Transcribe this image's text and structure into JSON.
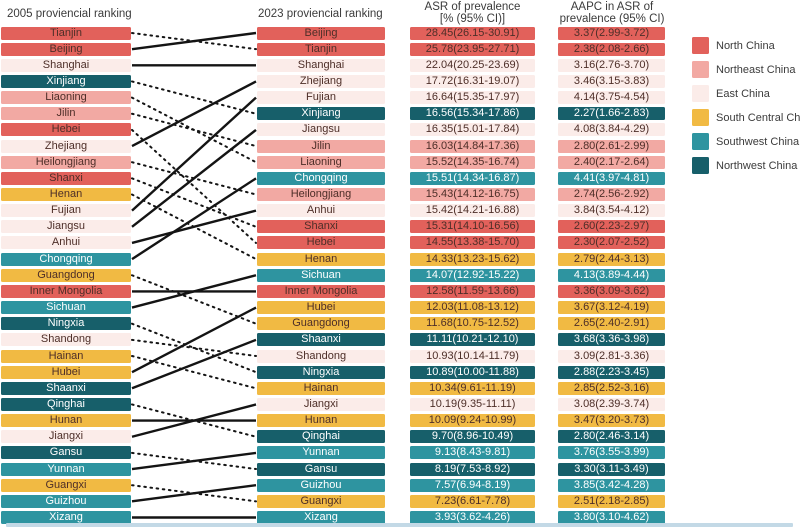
{
  "header": {
    "col_2005": "2005 proviencial ranking",
    "col_2023": "2023 proviencial ranking",
    "col_asr_line1": "ASR of prevalence",
    "col_asr_line2": "[% (95% CI)]",
    "col_aapc_line1": "AAPC in ASR of",
    "col_aapc_line2": "prevalence (95% CI)"
  },
  "regions": [
    {
      "name": "North China",
      "fill": "#e2615b",
      "text_color": "#4d2e28"
    },
    {
      "name": "Northeast China",
      "fill": "#f2a9a3",
      "text_color": "#4d2e28"
    },
    {
      "name": "East China",
      "fill": "#fbece9",
      "text_color": "#4d2e28"
    },
    {
      "name": "South Central China",
      "fill": "#f1ba43",
      "text_color": "#4d2e28"
    },
    {
      "name": "Southwest China",
      "fill": "#2e94a0",
      "text_color": "#ffffff"
    },
    {
      "name": "Northwest China",
      "fill": "#175f6a",
      "text_color": "#ffffff"
    }
  ],
  "chart_data": {
    "type": "table",
    "subtype": "slope-ranking (bump chart of provincial ranks 2005 vs 2023)",
    "columns": [
      "2005 proviencial ranking",
      "2023 proviencial ranking",
      "ASR of prevalence [% (95% CI)]",
      "AAPC in ASR of prevalence (95% CI)"
    ],
    "link_rule": "solid line = rank improved or unchanged from 2005 to 2023; dotted line = rank declined",
    "ranking_2005": [
      {
        "rank": 1,
        "province": "Tianjin",
        "region": "North China"
      },
      {
        "rank": 2,
        "province": "Beijing",
        "region": "North China"
      },
      {
        "rank": 3,
        "province": "Shanghai",
        "region": "East China"
      },
      {
        "rank": 4,
        "province": "Xinjiang",
        "region": "Northwest China"
      },
      {
        "rank": 5,
        "province": "Liaoning",
        "region": "Northeast China"
      },
      {
        "rank": 6,
        "province": "Jilin",
        "region": "Northeast China"
      },
      {
        "rank": 7,
        "province": "Hebei",
        "region": "North China"
      },
      {
        "rank": 8,
        "province": "Zhejiang",
        "region": "East China"
      },
      {
        "rank": 9,
        "province": "Heilongjiang",
        "region": "Northeast China"
      },
      {
        "rank": 10,
        "province": "Shanxi",
        "region": "North China"
      },
      {
        "rank": 11,
        "province": "Henan",
        "region": "South Central China"
      },
      {
        "rank": 12,
        "province": "Fujian",
        "region": "East China"
      },
      {
        "rank": 13,
        "province": "Jiangsu",
        "region": "East China"
      },
      {
        "rank": 14,
        "province": "Anhui",
        "region": "East China"
      },
      {
        "rank": 15,
        "province": "Chongqing",
        "region": "Southwest China"
      },
      {
        "rank": 16,
        "province": "Guangdong",
        "region": "South Central China"
      },
      {
        "rank": 17,
        "province": "Inner Mongolia",
        "region": "North China"
      },
      {
        "rank": 18,
        "province": "Sichuan",
        "region": "Southwest China"
      },
      {
        "rank": 19,
        "province": "Ningxia",
        "region": "Northwest China"
      },
      {
        "rank": 20,
        "province": "Shandong",
        "region": "East China"
      },
      {
        "rank": 21,
        "province": "Hainan",
        "region": "South Central China"
      },
      {
        "rank": 22,
        "province": "Hubei",
        "region": "South Central China"
      },
      {
        "rank": 23,
        "province": "Shaanxi",
        "region": "Northwest China"
      },
      {
        "rank": 24,
        "province": "Qinghai",
        "region": "Northwest China"
      },
      {
        "rank": 25,
        "province": "Hunan",
        "region": "South Central China"
      },
      {
        "rank": 26,
        "province": "Jiangxi",
        "region": "East China"
      },
      {
        "rank": 27,
        "province": "Gansu",
        "region": "Northwest China"
      },
      {
        "rank": 28,
        "province": "Yunnan",
        "region": "Southwest China"
      },
      {
        "rank": 29,
        "province": "Guangxi",
        "region": "South Central China"
      },
      {
        "rank": 30,
        "province": "Guizhou",
        "region": "Southwest China"
      },
      {
        "rank": 31,
        "province": "Xizang",
        "region": "Southwest China"
      }
    ],
    "ranking_2023": [
      {
        "rank": 1,
        "province": "Beijing",
        "region": "North China",
        "asr": "28.45(26.15-30.91)",
        "aapc": "3.37(2.99-3.72)"
      },
      {
        "rank": 2,
        "province": "Tianjin",
        "region": "North China",
        "asr": "25.78(23.95-27.71)",
        "aapc": "2.38(2.08-2.66)"
      },
      {
        "rank": 3,
        "province": "Shanghai",
        "region": "East China",
        "asr": "22.04(20.25-23.69)",
        "aapc": "3.16(2.76-3.70)"
      },
      {
        "rank": 4,
        "province": "Zhejiang",
        "region": "East China",
        "asr": "17.72(16.31-19.07)",
        "aapc": "3.46(3.15-3.83)"
      },
      {
        "rank": 5,
        "province": "Fujian",
        "region": "East China",
        "asr": "16.64(15.35-17.97)",
        "aapc": "4.14(3.75-4.54)"
      },
      {
        "rank": 6,
        "province": "Xinjiang",
        "region": "Northwest China",
        "asr": "16.56(15.34-17.86)",
        "aapc": "2.27(1.66-2.83)"
      },
      {
        "rank": 7,
        "province": "Jiangsu",
        "region": "East China",
        "asr": "16.35(15.01-17.84)",
        "aapc": "4.08(3.84-4.29)"
      },
      {
        "rank": 8,
        "province": "Jilin",
        "region": "Northeast China",
        "asr": "16.03(14.84-17.36)",
        "aapc": "2.80(2.61-2.99)"
      },
      {
        "rank": 9,
        "province": "Liaoning",
        "region": "Northeast China",
        "asr": "15.52(14.35-16.74)",
        "aapc": "2.40(2.17-2.64)"
      },
      {
        "rank": 10,
        "province": "Chongqing",
        "region": "Southwest China",
        "asr": "15.51(14.34-16.87)",
        "aapc": "4.41(3.97-4.81)"
      },
      {
        "rank": 11,
        "province": "Heilongjiang",
        "region": "Northeast China",
        "asr": "15.43(14.12-16.75)",
        "aapc": "2.74(2.56-2.92)"
      },
      {
        "rank": 12,
        "province": "Anhui",
        "region": "East China",
        "asr": "15.42(14.21-16.88)",
        "aapc": "3.84(3.54-4.12)"
      },
      {
        "rank": 13,
        "province": "Shanxi",
        "region": "North China",
        "asr": "15.31(14.10-16.56)",
        "aapc": "2.60(2.23-2.97)"
      },
      {
        "rank": 14,
        "province": "Hebei",
        "region": "North China",
        "asr": "14.55(13.38-15.70)",
        "aapc": "2.30(2.07-2.52)"
      },
      {
        "rank": 15,
        "province": "Henan",
        "region": "South Central China",
        "asr": "14.33(13.23-15.62)",
        "aapc": "2.79(2.44-3.13)"
      },
      {
        "rank": 16,
        "province": "Sichuan",
        "region": "Southwest China",
        "asr": "14.07(12.92-15.22)",
        "aapc": "4.13(3.89-4.44)"
      },
      {
        "rank": 17,
        "province": "Inner Mongolia",
        "region": "North China",
        "asr": "12.58(11.59-13.66)",
        "aapc": "3.36(3.09-3.62)"
      },
      {
        "rank": 18,
        "province": "Hubei",
        "region": "South Central China",
        "asr": "12.03(11.08-13.12)",
        "aapc": "3.67(3.12-4.19)"
      },
      {
        "rank": 19,
        "province": "Guangdong",
        "region": "South Central China",
        "asr": "11.68(10.75-12.52)",
        "aapc": "2.65(2.40-2.91)"
      },
      {
        "rank": 20,
        "province": "Shaanxi",
        "region": "Northwest China",
        "asr": "11.11(10.21-12.10)",
        "aapc": "3.68(3.36-3.98)"
      },
      {
        "rank": 21,
        "province": "Shandong",
        "region": "East China",
        "asr": "10.93(10.14-11.79)",
        "aapc": "3.09(2.81-3.36)"
      },
      {
        "rank": 22,
        "province": "Ningxia",
        "region": "Northwest China",
        "asr": "10.89(10.00-11.88)",
        "aapc": "2.88(2.23-3.45)"
      },
      {
        "rank": 23,
        "province": "Hainan",
        "region": "South Central China",
        "asr": "10.34(9.61-11.19)",
        "aapc": "2.85(2.52-3.16)"
      },
      {
        "rank": 24,
        "province": "Jiangxi",
        "region": "East China",
        "asr": "10.19(9.35-11.11)",
        "aapc": "3.08(2.39-3.74)"
      },
      {
        "rank": 25,
        "province": "Hunan",
        "region": "South Central China",
        "asr": "10.09(9.24-10.99)",
        "aapc": "3.47(3.20-3.73)"
      },
      {
        "rank": 26,
        "province": "Qinghai",
        "region": "Northwest China",
        "asr": "9.70(8.96-10.49)",
        "aapc": "2.80(2.46-3.14)"
      },
      {
        "rank": 27,
        "province": "Yunnan",
        "region": "Southwest China",
        "asr": "9.13(8.43-9.81)",
        "aapc": "3.76(3.55-3.99)"
      },
      {
        "rank": 28,
        "province": "Gansu",
        "region": "Northwest China",
        "asr": "8.19(7.53-8.92)",
        "aapc": "3.30(3.11-3.49)"
      },
      {
        "rank": 29,
        "province": "Guizhou",
        "region": "Southwest China",
        "asr": "7.57(6.94-8.19)",
        "aapc": "3.85(3.42-4.28)"
      },
      {
        "rank": 30,
        "province": "Guangxi",
        "region": "South Central China",
        "asr": "7.23(6.61-7.78)",
        "aapc": "2.51(2.18-2.85)"
      },
      {
        "rank": 31,
        "province": "Xizang",
        "region": "Southwest China",
        "asr": "3.93(3.62-4.26)",
        "aapc": "3.80(3.10-4.62)"
      }
    ]
  }
}
